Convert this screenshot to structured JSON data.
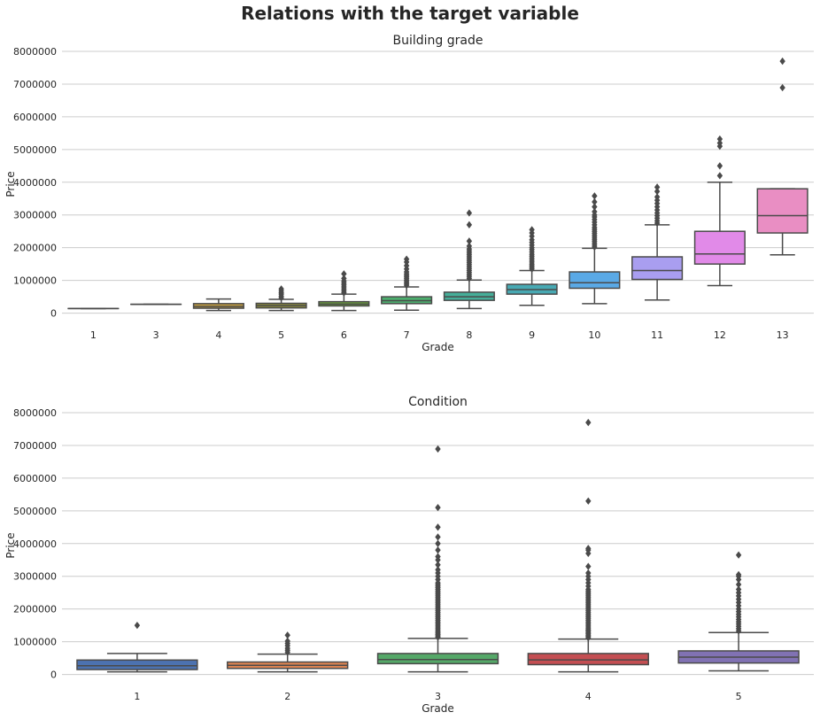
{
  "figure": {
    "suptitle": "Relations with the target variable"
  },
  "colors": {
    "grade": [
      "#5171b6",
      "#d1885a",
      "#c8a13f",
      "#8c8c3a",
      "#6aa13c",
      "#4cae6e",
      "#45ae99",
      "#48a9b3",
      "#5aa9e6",
      "#a99ef0",
      "#e18ae8",
      "#e98ec3"
    ],
    "condition": [
      "#4c72b0",
      "#dd8452",
      "#55a868",
      "#c44e52",
      "#8172b3"
    ],
    "line": "#4a4a4a",
    "grid": "#cccccc"
  },
  "chart_data": [
    {
      "type": "box",
      "title": "Building grade",
      "xlabel": "Grade",
      "ylabel": "Price",
      "ylim": [
        -120000,
        8000000
      ],
      "yticks": [
        0,
        1000000,
        2000000,
        3000000,
        4000000,
        5000000,
        6000000,
        7000000,
        8000000
      ],
      "ytick_labels": [
        "0",
        "1000000",
        "2000000",
        "3000000",
        "4000000",
        "5000000",
        "6000000",
        "7000000",
        "8000000"
      ],
      "grid": "horizontal",
      "categories": [
        "1",
        "3",
        "4",
        "5",
        "6",
        "7",
        "8",
        "9",
        "10",
        "11",
        "12",
        "13"
      ],
      "boxes": [
        {
          "whislo": 140000,
          "q1": 140000,
          "med": 140000,
          "q3": 140000,
          "whishi": 140000,
          "fliers": []
        },
        {
          "whislo": 270000,
          "q1": 270000,
          "med": 270000,
          "q3": 270000,
          "whishi": 270000,
          "fliers": []
        },
        {
          "whislo": 80000,
          "q1": 150000,
          "med": 205000,
          "q3": 290000,
          "whishi": 430000,
          "fliers": []
        },
        {
          "whislo": 80000,
          "q1": 160000,
          "med": 230000,
          "q3": 300000,
          "whishi": 420000,
          "fliers": [
            470000,
            520000,
            580000,
            620000,
            680000,
            740000
          ]
        },
        {
          "whislo": 80000,
          "q1": 220000,
          "med": 275000,
          "q3": 350000,
          "whishi": 580000,
          "fliers": [
            620000,
            680000,
            740000,
            800000,
            860000,
            920000,
            980000,
            1060000,
            1200000
          ]
        },
        {
          "whislo": 90000,
          "q1": 290000,
          "med": 380000,
          "q3": 500000,
          "whishi": 800000,
          "fliers": [
            850000,
            900000,
            950000,
            1000000,
            1050000,
            1100000,
            1150000,
            1200000,
            1260000,
            1350000,
            1450000,
            1560000,
            1650000
          ]
        },
        {
          "whislo": 140000,
          "q1": 390000,
          "med": 500000,
          "q3": 640000,
          "whishi": 1010000,
          "fliers": [
            1060000,
            1120000,
            1180000,
            1240000,
            1300000,
            1360000,
            1420000,
            1480000,
            1540000,
            1600000,
            1660000,
            1720000,
            1780000,
            1840000,
            1900000,
            1960000,
            2050000,
            2200000,
            2700000,
            3060000
          ]
        },
        {
          "whislo": 240000,
          "q1": 580000,
          "med": 720000,
          "q3": 880000,
          "whishi": 1300000,
          "fliers": [
            1350000,
            1400000,
            1450000,
            1500000,
            1560000,
            1620000,
            1680000,
            1740000,
            1800000,
            1870000,
            1940000,
            2000000,
            2080000,
            2160000,
            2240000,
            2350000,
            2450000,
            2550000
          ]
        },
        {
          "whislo": 290000,
          "q1": 760000,
          "med": 930000,
          "q3": 1260000,
          "whishi": 1980000,
          "fliers": [
            2020000,
            2080000,
            2140000,
            2200000,
            2260000,
            2320000,
            2380000,
            2440000,
            2500000,
            2560000,
            2620000,
            2700000,
            2780000,
            2860000,
            2940000,
            3000000,
            3100000,
            3250000,
            3400000,
            3580000
          ]
        },
        {
          "whislo": 400000,
          "q1": 1030000,
          "med": 1300000,
          "q3": 1720000,
          "whishi": 2700000,
          "fliers": [
            2750000,
            2820000,
            2900000,
            2980000,
            3060000,
            3150000,
            3250000,
            3350000,
            3450000,
            3550000,
            3720000,
            3850000
          ]
        },
        {
          "whislo": 840000,
          "q1": 1500000,
          "med": 1810000,
          "q3": 2500000,
          "whishi": 4000000,
          "fliers": [
            4200000,
            4500000,
            5100000,
            5200000,
            5320000
          ]
        },
        {
          "whislo": 1780000,
          "q1": 2450000,
          "med": 2980000,
          "q3": 3800000,
          "whishi": 3800000,
          "fliers": [
            6890000,
            7700000
          ]
        }
      ]
    },
    {
      "type": "box",
      "title": "Condition",
      "xlabel": "Grade",
      "ylabel": "Price",
      "ylim": [
        -120000,
        8000000
      ],
      "yticks": [
        0,
        1000000,
        2000000,
        3000000,
        4000000,
        5000000,
        6000000,
        7000000,
        8000000
      ],
      "ytick_labels": [
        "0",
        "1000000",
        "2000000",
        "3000000",
        "4000000",
        "5000000",
        "6000000",
        "7000000",
        "8000000"
      ],
      "grid": "horizontal",
      "categories": [
        "1",
        "2",
        "3",
        "4",
        "5"
      ],
      "boxes": [
        {
          "whislo": 78000,
          "q1": 150000,
          "med": 265000,
          "q3": 440000,
          "whishi": 640000,
          "fliers": [
            1500000
          ]
        },
        {
          "whislo": 80000,
          "q1": 185000,
          "med": 280000,
          "q3": 380000,
          "whishi": 620000,
          "fliers": [
            680000,
            740000,
            800000,
            880000,
            950000,
            1020000,
            1200000
          ]
        },
        {
          "whislo": 80000,
          "q1": 330000,
          "med": 455000,
          "q3": 640000,
          "whishi": 1100000,
          "fliers": [
            1140000,
            1180000,
            1220000,
            1260000,
            1300000,
            1350000,
            1400000,
            1450000,
            1500000,
            1550000,
            1600000,
            1650000,
            1700000,
            1750000,
            1800000,
            1850000,
            1900000,
            1950000,
            2000000,
            2050000,
            2100000,
            2150000,
            2200000,
            2250000,
            2300000,
            2350000,
            2400000,
            2450000,
            2500000,
            2550000,
            2600000,
            2650000,
            2700000,
            2750000,
            2800000,
            2900000,
            3000000,
            3100000,
            3200000,
            3350000,
            3500000,
            3600000,
            3800000,
            4000000,
            4200000,
            4500000,
            5100000,
            6890000
          ]
        },
        {
          "whislo": 80000,
          "q1": 300000,
          "med": 445000,
          "q3": 640000,
          "whishi": 1080000,
          "fliers": [
            1120000,
            1160000,
            1200000,
            1240000,
            1280000,
            1320000,
            1360000,
            1400000,
            1450000,
            1500000,
            1550000,
            1600000,
            1650000,
            1700000,
            1750000,
            1800000,
            1850000,
            1900000,
            1950000,
            2000000,
            2050000,
            2100000,
            2150000,
            2200000,
            2250000,
            2300000,
            2350000,
            2400000,
            2450000,
            2500000,
            2550000,
            2600000,
            2700000,
            2800000,
            2900000,
            3000000,
            3100000,
            3300000,
            3700000,
            3800000,
            3850000,
            5300000,
            7700000
          ]
        },
        {
          "whislo": 110000,
          "q1": 350000,
          "med": 530000,
          "q3": 720000,
          "whishi": 1280000,
          "fliers": [
            1330000,
            1400000,
            1470000,
            1540000,
            1610000,
            1680000,
            1760000,
            1840000,
            1920000,
            2000000,
            2100000,
            2200000,
            2300000,
            2400000,
            2500000,
            2600000,
            2750000,
            2900000,
            3000000,
            3050000,
            3650000
          ]
        }
      ]
    }
  ]
}
